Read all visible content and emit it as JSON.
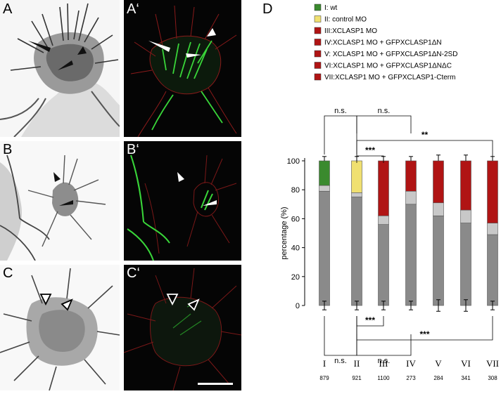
{
  "figure": {
    "panels": [
      {
        "id": "A",
        "label": "A",
        "type": "brightfield-inverted"
      },
      {
        "id": "A'",
        "label": "A‘",
        "type": "fluorescence"
      },
      {
        "id": "B",
        "label": "B",
        "type": "brightfield-inverted"
      },
      {
        "id": "B'",
        "label": "B‘",
        "type": "fluorescence"
      },
      {
        "id": "C",
        "label": "C",
        "type": "brightfield-inverted"
      },
      {
        "id": "C'",
        "label": "C‘",
        "type": "fluorescence"
      }
    ],
    "chart_panel_label": "D",
    "colors": {
      "green": "#3a8a2e",
      "yellow": "#f0e070",
      "red": "#b01414",
      "dark_gray": "#8a8a8a",
      "light_gray": "#c8c8c8"
    }
  },
  "chart_data": {
    "type": "bar",
    "stacked": true,
    "legend": [
      {
        "key": "I",
        "label": "I: wt",
        "color": "#3a8a2e"
      },
      {
        "key": "II",
        "label": "II: control MO",
        "color": "#f0e070"
      },
      {
        "key": "III",
        "label": "III:XCLASP1 MO",
        "color": "#b01414"
      },
      {
        "key": "IV",
        "label": "IV:XCLASP1 MO + GFPXCLASP1ΔN",
        "color": "#b01414"
      },
      {
        "key": "V",
        "label": "V: XCLASP1 MO + GFPXCLASP1ΔN-2SD",
        "color": "#b01414"
      },
      {
        "key": "VI",
        "label": "VI:XCLASP1 MO + GFPXCLASP1ΔNΔC",
        "color": "#b01414"
      },
      {
        "key": "VII",
        "label": "VII:XCLASP1 MO + GFPXCLASP1-Cterm",
        "color": "#b01414"
      }
    ],
    "categories": [
      "I",
      "II",
      "III",
      "IV",
      "V",
      "VI",
      "VII"
    ],
    "n_values": [
      "879",
      "921",
      "1100",
      "273",
      "284",
      "341",
      "308"
    ],
    "ylabel": "percentage (%)",
    "ylim": [
      0,
      100
    ],
    "yticks": [
      "0",
      "20",
      "40",
      "60",
      "80",
      "100"
    ],
    "series": [
      {
        "values": [
          79,
          75,
          56,
          70,
          62,
          57,
          49
        ],
        "color": "#8a8a8a"
      },
      {
        "values": [
          4,
          3,
          6,
          9,
          9,
          9,
          8
        ],
        "color": "#c8c8c8"
      },
      {
        "values": [
          17,
          22,
          38,
          21,
          29,
          34,
          43
        ],
        "colors": [
          "#3a8a2e",
          "#f0e070",
          "#b01414",
          "#b01414",
          "#b01414",
          "#b01414",
          "#b01414"
        ]
      }
    ],
    "error_top": [
      3,
      3,
      3,
      3,
      4,
      4,
      3
    ],
    "error_bottom": [
      3,
      3,
      3,
      3,
      4,
      4,
      3
    ],
    "significance_top": [
      {
        "from": 0,
        "to": 1,
        "label": "n.s."
      },
      {
        "from": 1,
        "to": 3,
        "label": "n.s."
      },
      {
        "from": 1,
        "to": 6,
        "label": "**"
      },
      {
        "from": 1,
        "to": 2,
        "label": "***"
      }
    ],
    "significance_bottom": [
      {
        "from": 1,
        "to": 2,
        "label": "***"
      },
      {
        "from": 1,
        "to": 6,
        "label": "***"
      },
      {
        "from": 0,
        "to": 1,
        "label": "n.s."
      },
      {
        "from": 1,
        "to": 3,
        "label": "n.s."
      }
    ]
  }
}
